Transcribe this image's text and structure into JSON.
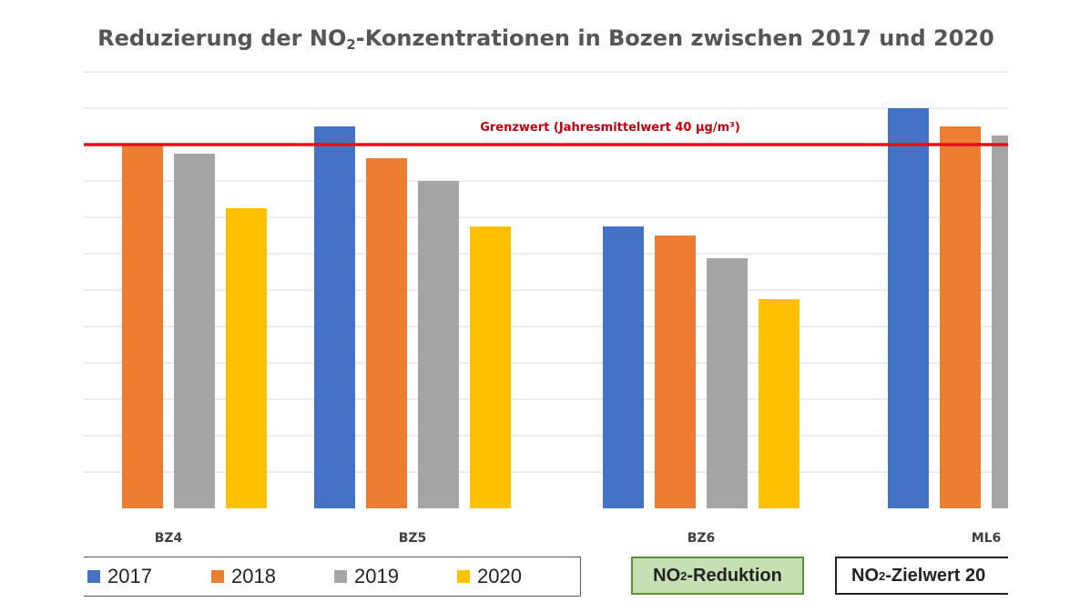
{
  "chart_data": {
    "type": "bar",
    "title": {
      "part1": "Reduzierung der NO",
      "sub": "2",
      "part2": "-Konzentrationen in Bozen zwischen 2017  und 2020"
    },
    "categories": [
      "BZ4",
      "BZ5",
      "BZ6",
      "ML6"
    ],
    "series": [
      {
        "name": "2017",
        "color": "#4472c4",
        "values": [
          null,
          42,
          31,
          44
        ]
      },
      {
        "name": "2018",
        "color": "#ed7d31",
        "values": [
          40,
          38.5,
          30,
          42
        ]
      },
      {
        "name": "2019",
        "color": "#a5a5a5",
        "values": [
          39,
          36,
          27.5,
          41
        ]
      },
      {
        "name": "2020",
        "color": "#ffc000",
        "values": [
          33,
          31,
          23,
          null
        ]
      }
    ],
    "ylim": [
      0,
      48
    ],
    "grid": true,
    "reference_line": {
      "value": 40,
      "label": "Grenzwert (Jahresmittelwert 40 µg/m³)",
      "color": "#e3101a"
    },
    "legend": "bottom"
  },
  "tags": {
    "reduction": {
      "part1": "NO",
      "sub": "2",
      "part2": "-Reduktion"
    },
    "target": {
      "part1": "NO",
      "sub": "2",
      "part2": "-Zielwert 20"
    }
  }
}
